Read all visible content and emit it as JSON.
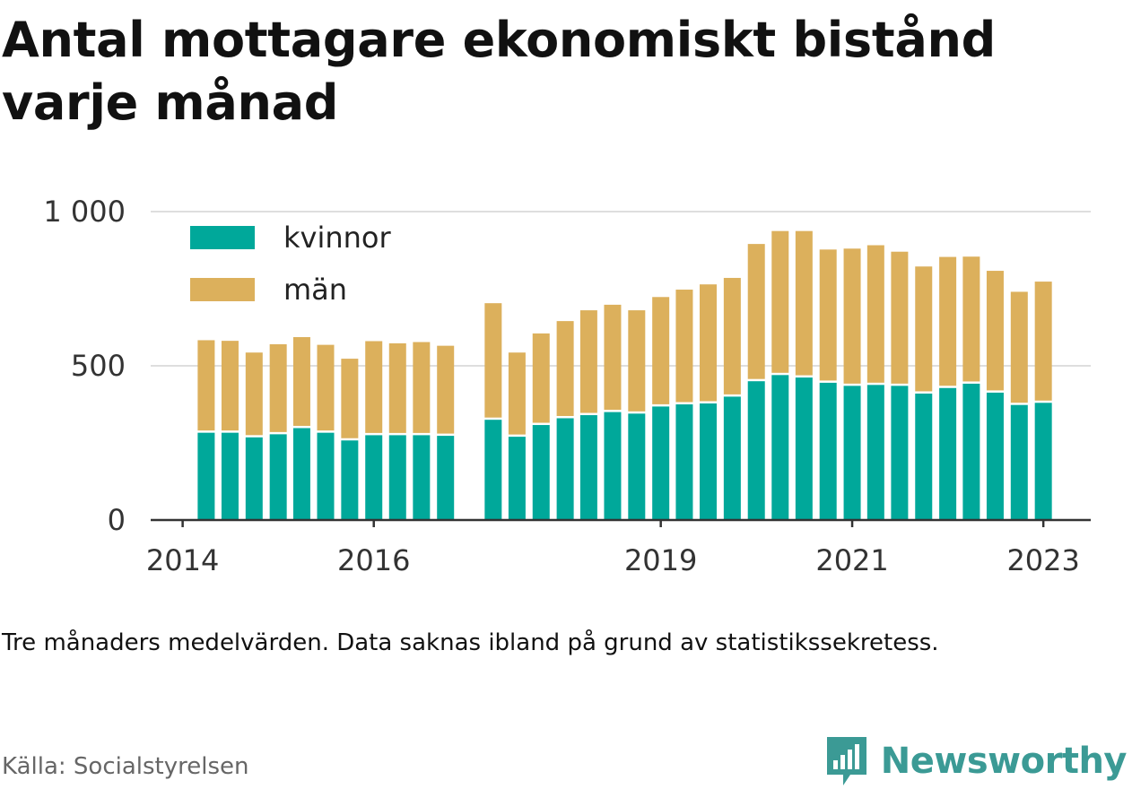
{
  "title": "Antal mottagare ekonomiskt bistånd varje månad",
  "subtitle": "Tre månaders medelvärden. Data saknas ibland på grund av statistikssekretess.",
  "source": "Källa: Socialstyrelsen",
  "brand": {
    "name": "Newsworthy",
    "color": "#3b9a95",
    "icon": "bar-chart-speech-icon"
  },
  "chart_data": {
    "type": "bar",
    "stacked": true,
    "grid": "horizontal",
    "legend_position": "top-left",
    "ylim": [
      0,
      1000
    ],
    "y_ticks": [
      0,
      500,
      1000
    ],
    "y_tick_labels": [
      "0",
      "500",
      "1 000"
    ],
    "x_ticks": [
      {
        "label": "2014",
        "x": "2014-01-01"
      },
      {
        "label": "2016",
        "x": "2016-01-01"
      },
      {
        "label": "2019",
        "x": "2019-01-01"
      },
      {
        "label": "2021",
        "x": "2021-01-01"
      },
      {
        "label": "2023",
        "x": "2023-01-01"
      }
    ],
    "x_range": [
      "2013-09-01",
      "2023-07-01"
    ],
    "x": [
      "2014-04",
      "2014-07",
      "2014-10",
      "2015-01",
      "2015-04",
      "2015-07",
      "2015-10",
      "2016-01",
      "2016-04",
      "2016-07",
      "2016-10",
      "2017-04",
      "2017-07",
      "2017-10",
      "2018-01",
      "2018-04",
      "2018-07",
      "2018-10",
      "2019-01",
      "2019-04",
      "2019-07",
      "2019-10",
      "2020-01",
      "2020-04",
      "2020-07",
      "2020-10",
      "2021-01",
      "2021-04",
      "2021-07",
      "2021-10",
      "2022-01",
      "2022-04",
      "2022-07",
      "2022-10",
      "2023-01"
    ],
    "series": [
      {
        "name": "kvinnor",
        "color": "#00a89a",
        "values": [
          283,
          283,
          268,
          278,
          298,
          283,
          258,
          275,
          275,
          275,
          273,
          325,
          270,
          308,
          330,
          340,
          350,
          345,
          368,
          375,
          378,
          400,
          450,
          470,
          462,
          445,
          435,
          438,
          435,
          410,
          428,
          442,
          413,
          373,
          380
        ]
      },
      {
        "name": "män",
        "color": "#dcb05c",
        "values": [
          300,
          298,
          275,
          292,
          295,
          285,
          265,
          305,
          298,
          302,
          292,
          378,
          273,
          297,
          315,
          340,
          348,
          335,
          355,
          372,
          386,
          385,
          445,
          467,
          475,
          432,
          445,
          453,
          435,
          412,
          425,
          412,
          395,
          367,
          393
        ]
      }
    ]
  }
}
